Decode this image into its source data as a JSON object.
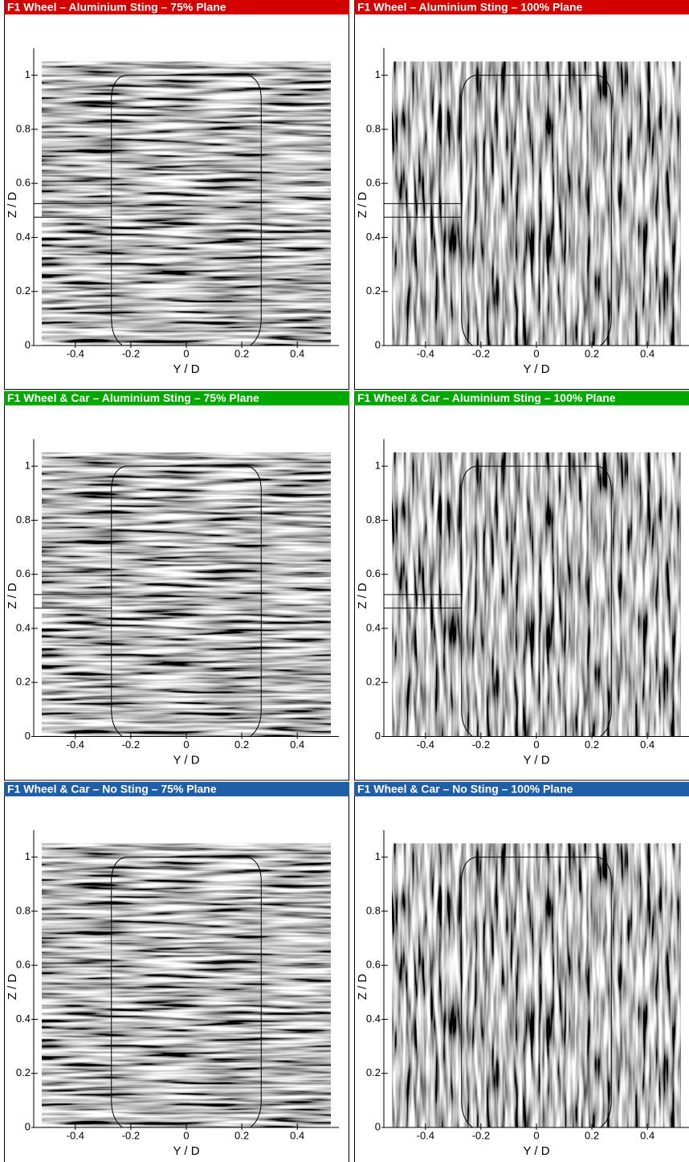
{
  "chart_data": [
    {
      "type": "streamline",
      "title": "F1 Wheel  –  Aluminium Sting – 75% Plane",
      "header_color": "#d40000",
      "sting": true,
      "xlabel": "Y / D",
      "ylabel": "Z / D",
      "xlim": [
        -0.55,
        0.55
      ],
      "ylim": [
        0,
        1.1
      ],
      "xticks": [
        -0.4,
        -0.2,
        0,
        0.2,
        0.4
      ],
      "yticks": [
        0,
        0.2,
        0.4,
        0.6,
        0.8,
        1
      ]
    },
    {
      "type": "streamline",
      "title": "F1 Wheel  –  Aluminium Sting – 100% Plane",
      "header_color": "#d40000",
      "sting": true,
      "xlabel": "Y / D",
      "ylabel": "Z / D",
      "xlim": [
        -0.55,
        0.55
      ],
      "ylim": [
        0,
        1.1
      ],
      "xticks": [
        -0.4,
        -0.2,
        0,
        0.2,
        0.4
      ],
      "yticks": [
        0,
        0.2,
        0.4,
        0.6,
        0.8,
        1
      ]
    },
    {
      "type": "streamline",
      "title": "F1 Wheel & Car  –  Aluminium Sting – 75% Plane",
      "header_color": "#00a800",
      "sting": true,
      "xlabel": "Y / D",
      "ylabel": "Z / D",
      "xlim": [
        -0.55,
        0.55
      ],
      "ylim": [
        0,
        1.1
      ],
      "xticks": [
        -0.4,
        -0.2,
        0,
        0.2,
        0.4
      ],
      "yticks": [
        0,
        0.2,
        0.4,
        0.6,
        0.8,
        1
      ]
    },
    {
      "type": "streamline",
      "title": "F1 Wheel & Car  –  Aluminium Sting – 100% Plane",
      "header_color": "#00a800",
      "sting": true,
      "xlabel": "Y / D",
      "ylabel": "Z / D",
      "xlim": [
        -0.55,
        0.55
      ],
      "ylim": [
        0,
        1.1
      ],
      "xticks": [
        -0.4,
        -0.2,
        0,
        0.2,
        0.4
      ],
      "yticks": [
        0,
        0.2,
        0.4,
        0.6,
        0.8,
        1
      ]
    },
    {
      "type": "streamline",
      "title": "F1 Wheel & Car  –  No Sting – 75% Plane",
      "header_color": "#1f5fa8",
      "sting": false,
      "xlabel": "Y / D",
      "ylabel": "Z / D",
      "xlim": [
        -0.55,
        0.55
      ],
      "ylim": [
        0,
        1.1
      ],
      "xticks": [
        -0.4,
        -0.2,
        0,
        0.2,
        0.4
      ],
      "yticks": [
        0,
        0.2,
        0.4,
        0.6,
        0.8,
        1
      ]
    },
    {
      "type": "streamline",
      "title": "F1 Wheel & Car  –  No Sting – 100% Plane",
      "header_color": "#1f5fa8",
      "sting": false,
      "xlabel": "Y / D",
      "ylabel": "Z / D",
      "xlim": [
        -0.55,
        0.55
      ],
      "ylim": [
        0,
        1.1
      ],
      "xticks": [
        -0.4,
        -0.2,
        0,
        0.2,
        0.4
      ],
      "yticks": [
        0,
        0.2,
        0.4,
        0.6,
        0.8,
        1
      ]
    }
  ]
}
